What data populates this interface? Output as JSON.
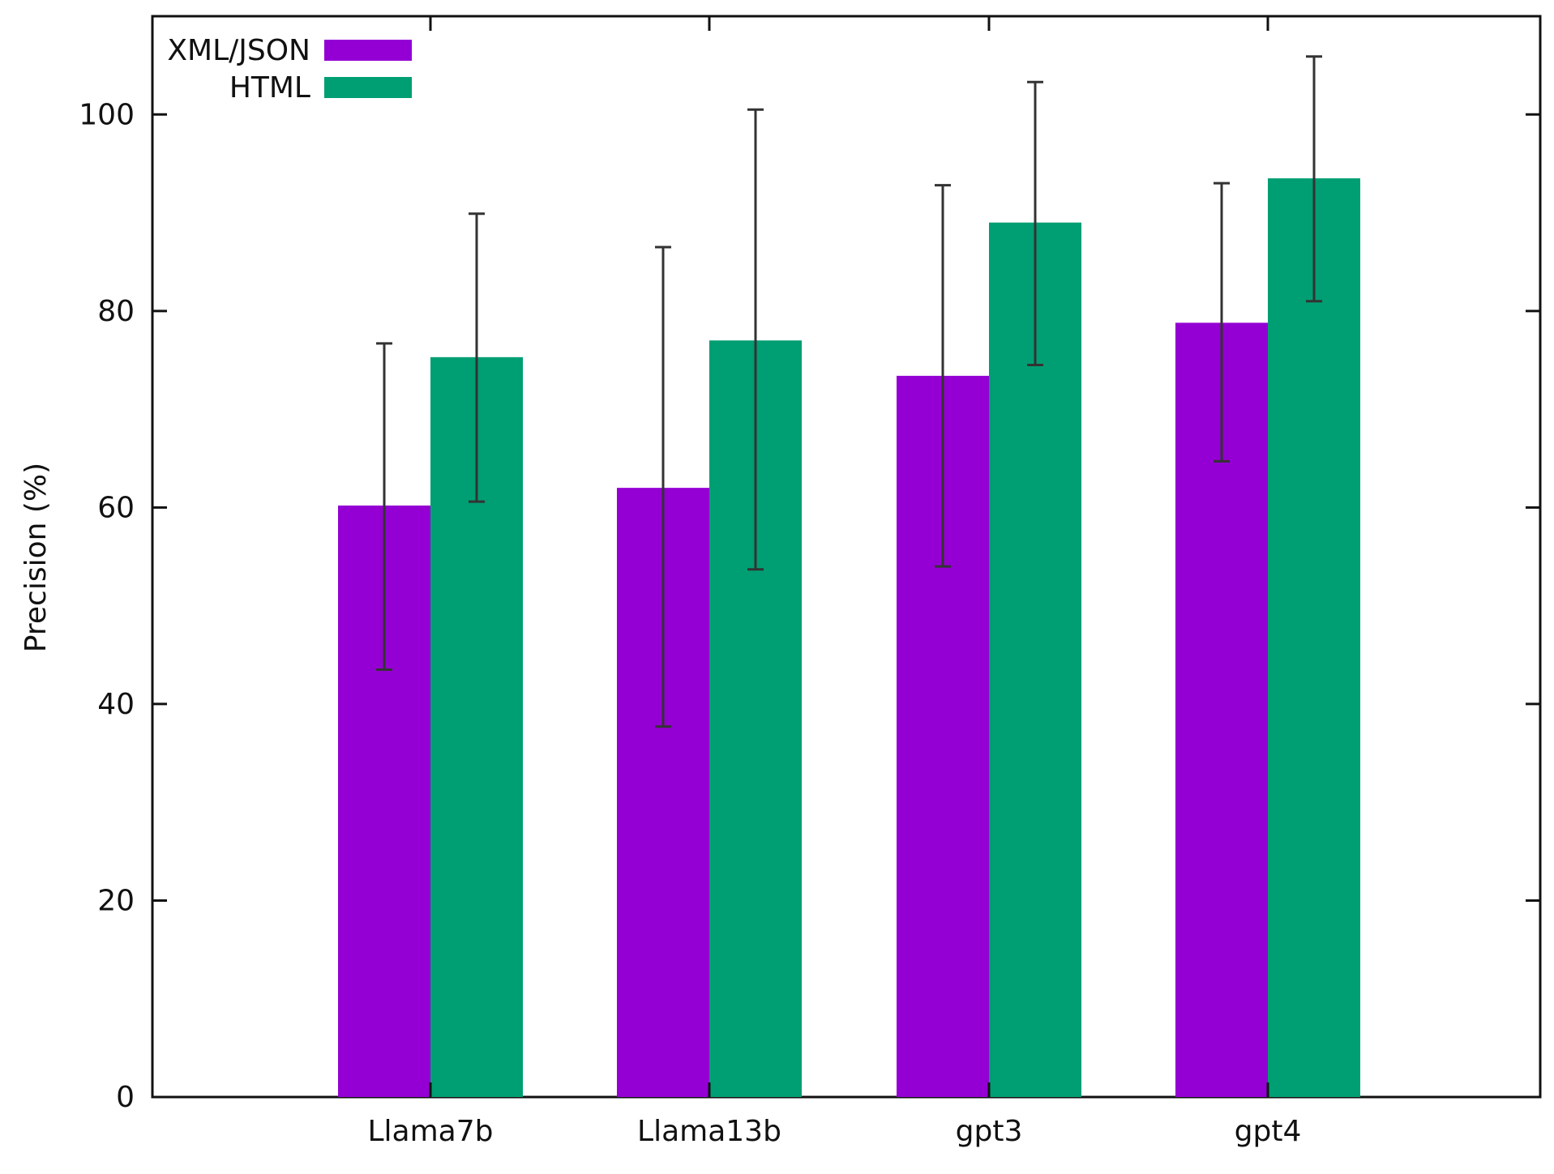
{
  "chart_data": {
    "type": "bar",
    "title": "",
    "xlabel": "",
    "ylabel": "Precision (%)",
    "categories": [
      "Llama7b",
      "Llama13b",
      "gpt3",
      "gpt4"
    ],
    "ylim": [
      0,
      110
    ],
    "yticks": [
      0,
      20,
      40,
      60,
      80,
      100
    ],
    "grid": false,
    "legend_position": "top-left",
    "series": [
      {
        "name": "XML/JSON",
        "color": "#9400d3",
        "values": [
          60.2,
          62.0,
          73.4,
          78.8
        ],
        "error_low": [
          43.5,
          37.7,
          54.0,
          64.7
        ],
        "error_high": [
          76.7,
          86.5,
          92.8,
          93.0
        ]
      },
      {
        "name": "HTML",
        "color": "#009e73",
        "values": [
          75.3,
          77.0,
          89.0,
          93.5
        ],
        "error_low": [
          60.6,
          53.7,
          74.5,
          81.0
        ],
        "error_high": [
          89.9,
          100.5,
          103.3,
          105.9
        ]
      }
    ],
    "error_bar_color": "#333333"
  }
}
